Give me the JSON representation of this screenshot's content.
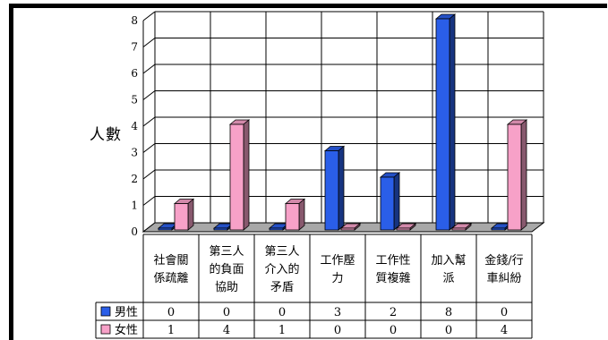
{
  "chart_data": {
    "type": "bar",
    "title": "",
    "ylabel": "人數",
    "xlabel": "",
    "ylim": [
      0,
      8
    ],
    "yticks": [
      0,
      1,
      2,
      3,
      4,
      5,
      6,
      7,
      8
    ],
    "grid": true,
    "categories": [
      [
        "社會關",
        "係疏離"
      ],
      [
        "第三人",
        "的負面",
        "協助"
      ],
      [
        "第三人",
        "介入的",
        "矛盾"
      ],
      [
        "工作壓",
        "力"
      ],
      [
        "工作性",
        "質複雜"
      ],
      [
        "加入幫",
        "派"
      ],
      [
        "金錢/行",
        "車糾紛"
      ]
    ],
    "series": [
      {
        "name": "男性",
        "values": [
          0,
          0,
          0,
          3,
          2,
          8,
          0
        ],
        "color": "#2a5ee8"
      },
      {
        "name": "女性",
        "values": [
          1,
          4,
          1,
          0,
          0,
          0,
          4
        ],
        "color": "#f7a1c8"
      }
    ],
    "legend_placement": "data-table"
  }
}
